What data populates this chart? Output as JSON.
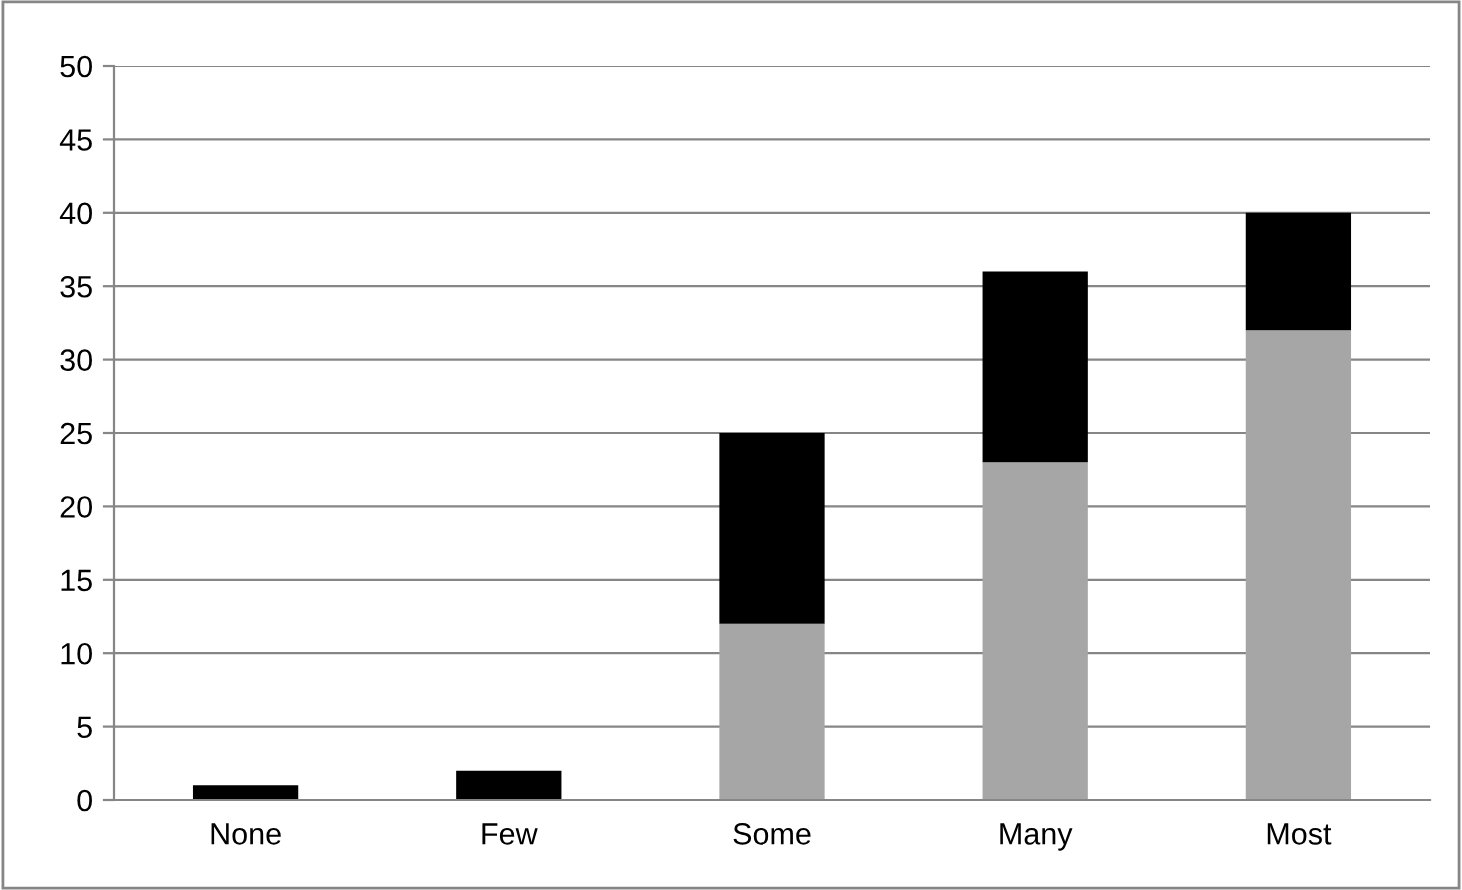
{
  "chart_data": {
    "type": "bar",
    "stacked": true,
    "categories": [
      "None",
      "Few",
      "Some",
      "Many",
      "Most"
    ],
    "series": [
      {
        "color": "#a6a6a6",
        "values": [
          0,
          0,
          12,
          23,
          32
        ]
      },
      {
        "color": "#000000",
        "values": [
          1,
          2,
          13,
          13,
          8
        ]
      }
    ],
    "ylim": [
      0,
      50
    ],
    "yticks": [
      0,
      5,
      10,
      15,
      20,
      25,
      30,
      35,
      40,
      45,
      50
    ],
    "grid": "y",
    "legend": false
  }
}
